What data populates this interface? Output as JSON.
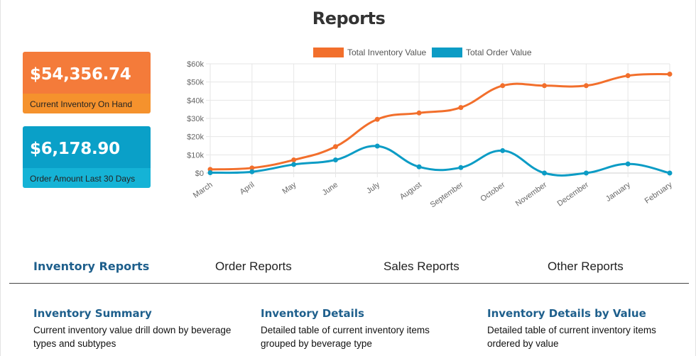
{
  "page": {
    "title": "Reports"
  },
  "stats": {
    "inventory": {
      "value": "$54,356.74",
      "label": "Current Inventory On Hand",
      "color": "#f47b3a"
    },
    "orders": {
      "value": "$6,178.90",
      "label": "Order Amount Last 30 Days",
      "color": "#0aa0c8"
    }
  },
  "chart_data": {
    "type": "line",
    "categories": [
      "March",
      "April",
      "May",
      "June",
      "July",
      "August",
      "September",
      "October",
      "November",
      "December",
      "January",
      "February"
    ],
    "series": [
      {
        "name": "Total Inventory Value",
        "color": "#f26f2c",
        "values": [
          2000,
          2800,
          7200,
          14500,
          29500,
          33000,
          36000,
          48000,
          48000,
          48000,
          53500,
          54357
        ]
      },
      {
        "name": "Total Order Value",
        "color": "#0c9cc5",
        "values": [
          200,
          700,
          4700,
          7200,
          14800,
          3400,
          3000,
          12300,
          0,
          0,
          5000,
          0
        ]
      }
    ],
    "yticks": [
      "$0",
      "$10k",
      "$20k",
      "$30k",
      "$40k",
      "$50k",
      "$60k"
    ],
    "ylim": [
      0,
      60000
    ],
    "legend_position": "top",
    "grid": true
  },
  "tabs": [
    {
      "label": "Inventory Reports",
      "active": true
    },
    {
      "label": "Order Reports",
      "active": false
    },
    {
      "label": "Sales Reports",
      "active": false
    },
    {
      "label": "Other Reports",
      "active": false
    }
  ],
  "reports": [
    {
      "title": "Inventory Summary",
      "description": "Current inventory value drill down by beverage types and subtypes"
    },
    {
      "title": "Inventory Details",
      "description": "Detailed table of current inventory items grouped by beverage type"
    },
    {
      "title": "Inventory Details by Value",
      "description": "Detailed table of current inventory items ordered by value"
    }
  ]
}
